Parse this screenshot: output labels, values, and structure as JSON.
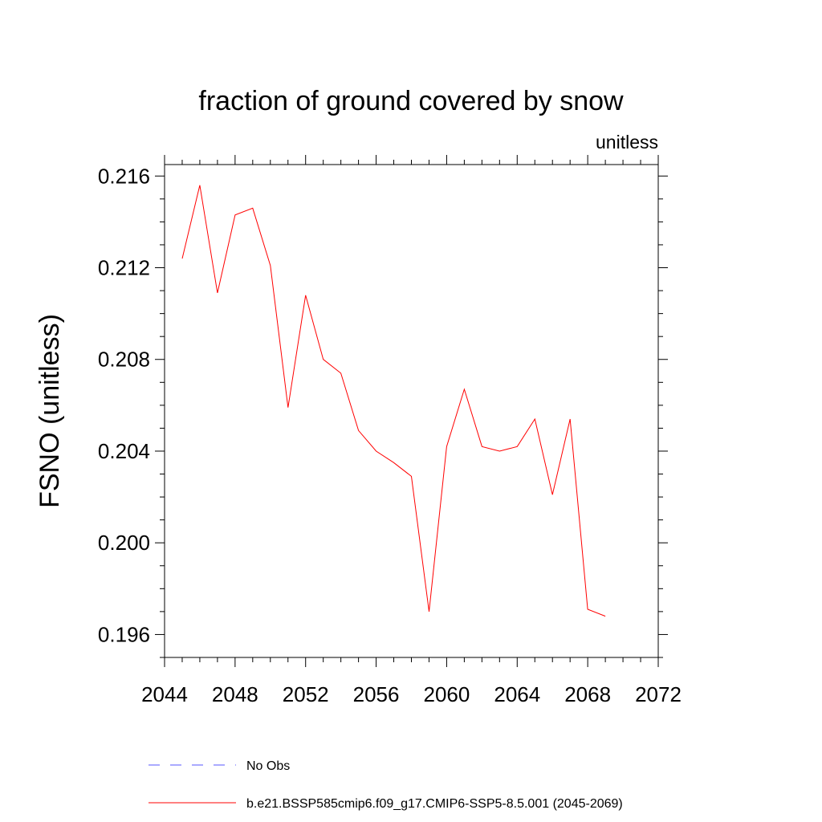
{
  "chart_data": {
    "type": "line",
    "title": "fraction of ground covered by snow",
    "units_label": "unitless",
    "xlabel": "",
    "ylabel": "FSNO  (unitless)",
    "xlim": [
      2044,
      2072
    ],
    "ylim": [
      0.195,
      0.2165
    ],
    "x_ticks": [
      "2044",
      "2048",
      "2052",
      "2056",
      "2060",
      "2064",
      "2068",
      "2072"
    ],
    "y_ticks": [
      "0.196",
      "0.200",
      "0.204",
      "0.208",
      "0.212",
      "0.216"
    ],
    "grid": false,
    "series": [
      {
        "name": "b.e21.BSSP585cmip6.f09_g17.CMIP6-SSP5-8.5.001 (2045-2069)",
        "color": "#ff0000",
        "x": [
          2045,
          2046,
          2047,
          2048,
          2049,
          2050,
          2051,
          2052,
          2053,
          2054,
          2055,
          2056,
          2057,
          2058,
          2059,
          2060,
          2061,
          2062,
          2063,
          2064,
          2065,
          2066,
          2067,
          2068,
          2069
        ],
        "y": [
          0.2124,
          0.2156,
          0.2109,
          0.2143,
          0.2146,
          0.2121,
          0.2059,
          0.2108,
          0.208,
          0.2074,
          0.2049,
          0.204,
          0.2035,
          0.2029,
          0.197,
          0.2042,
          0.2067,
          0.2042,
          0.204,
          0.2042,
          0.2054,
          0.2021,
          0.2054,
          0.1971,
          0.1968
        ]
      }
    ],
    "legend": {
      "position": "bottom",
      "entries": [
        {
          "label": "No Obs",
          "color": "#5555ff",
          "style": "dashed"
        },
        {
          "label": "b.e21.BSSP585cmip6.f09_g17.CMIP6-SSP5-8.5.001 (2045-2069)",
          "color": "#ff0000",
          "style": "solid"
        }
      ]
    }
  }
}
